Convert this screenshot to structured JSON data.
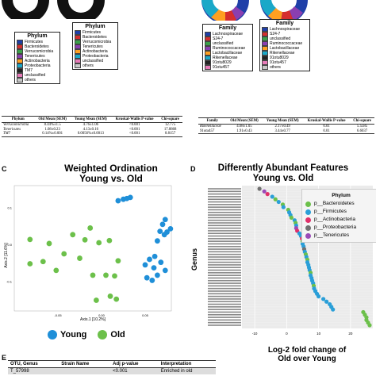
{
  "phylum_legend_1": {
    "title": "Phylum",
    "items": [
      {
        "label": "Firmicutes",
        "color": "#1f3fa8"
      },
      {
        "label": "Bacteroidetes",
        "color": "#d62e2e"
      },
      {
        "label": "Verrucomicrobia",
        "color": "#3aa04a"
      },
      {
        "label": "Tenericutes",
        "color": "#8a3fb0"
      },
      {
        "label": "Actinobacteria",
        "color": "#ffa020"
      },
      {
        "label": "Proteobacteria",
        "color": "#1aa8c8"
      },
      {
        "label": "TM7",
        "color": "#222222"
      },
      {
        "label": "unclassified",
        "color": "#e67ab8"
      },
      {
        "label": "others",
        "color": "#c8c8c8"
      }
    ]
  },
  "phylum_legend_2": {
    "title": "Phylum",
    "items": [
      {
        "label": "Firmicutes",
        "color": "#1f3fa8"
      },
      {
        "label": "Bacteroidetes",
        "color": "#d62e2e"
      },
      {
        "label": "Verrucomicrobia",
        "color": "#3aa04a"
      },
      {
        "label": "Tenericutes",
        "color": "#8a3fb0"
      },
      {
        "label": "Actinobacteria",
        "color": "#ffa020"
      },
      {
        "label": "Proteobacteria",
        "color": "#1aa8c8"
      },
      {
        "label": "unclassified",
        "color": "#e67ab8"
      },
      {
        "label": "others",
        "color": "#c8c8c8"
      }
    ]
  },
  "family_legend_1": {
    "title": "Family",
    "items": [
      {
        "label": "Lachnospiraceae",
        "color": "#1f3fa8"
      },
      {
        "label": "S24-7",
        "color": "#d62e2e"
      },
      {
        "label": "unclassified",
        "color": "#3aa04a"
      },
      {
        "label": "Ruminococcaceae",
        "color": "#8a3fb0"
      },
      {
        "label": "Lactobacillaceae",
        "color": "#ffa020"
      },
      {
        "label": "Rikenellaceae",
        "color": "#1aa8c8"
      },
      {
        "label": "91otu8029",
        "color": "#222222"
      },
      {
        "label": "91otu457",
        "color": "#e67ab8"
      }
    ]
  },
  "family_legend_2": {
    "title": "Family",
    "items": [
      {
        "label": "Lachnospiraceae",
        "color": "#1f3fa8"
      },
      {
        "label": "S24-7",
        "color": "#d62e2e"
      },
      {
        "label": "unclassified",
        "color": "#3aa04a"
      },
      {
        "label": "Ruminococcaceae",
        "color": "#8a3fb0"
      },
      {
        "label": "Lactobacillaceae",
        "color": "#ffa020"
      },
      {
        "label": "Rikenellaceae",
        "color": "#1aa8c8"
      },
      {
        "label": "91otu8029",
        "color": "#222222"
      },
      {
        "label": "91otu457",
        "color": "#e67ab8"
      },
      {
        "label": "others",
        "color": "#c8c8c8"
      }
    ]
  },
  "phylum_table": {
    "headers": [
      "Phylum",
      "Old Mean (SEM)",
      "Young Mean (SEM)",
      "Kruskal-Wallis P-value",
      "Chi-square"
    ],
    "rows": [
      [
        "Verrucomicrobia",
        "8.44%±1.5",
        "4.76±1.06",
        "<0.001",
        "12.775"
      ],
      [
        "Tenericutes",
        "1.08±0.23",
        "4.13±0.16",
        "<0.001",
        "17.8868"
      ],
      [
        "TM7",
        "0.14%±0.001",
        "0.0056%±0.0013",
        "<0.001",
        "8.8157"
      ]
    ]
  },
  "family_table": {
    "headers": [
      "Family",
      "Old Mean (SEM)",
      "Young Mean (SEM)",
      "Kruskal-Wallis P-value",
      "Chi-square"
    ],
    "rows": [
      [
        "Rikenellaceae",
        "4.68±1.05",
        "2.17±0.49",
        "0.01",
        "5.5585"
      ],
      [
        "91otu457",
        "1.91±0.43",
        "3.44±0.77",
        "0.01",
        "6.6037"
      ]
    ]
  },
  "panel_c": {
    "letter": "C",
    "title_line1": "Weighted Ordination",
    "title_line2": "Young vs. Old",
    "xlabel": "Axis.1  [10.2%]",
    "ylabel": "Axis.2  [11.6%]",
    "xticks": [
      "-0.05",
      "0.00",
      "0.05"
    ],
    "yticks": [
      "0.1",
      "0.0",
      "-0.1"
    ],
    "legend": [
      {
        "label": "Young",
        "color": "#1f8fd8"
      },
      {
        "label": "Old",
        "color": "#6cc04a"
      }
    ]
  },
  "panel_d": {
    "letter": "D",
    "title_line1": "Differently Abundant Features",
    "title_line2": "Young vs. Old",
    "ylabel": "Genus",
    "xlabel_line1": "Log-2 fold change of",
    "xlabel_line2": "Old over Young",
    "xticks": [
      "-10",
      "0",
      "10",
      "20"
    ],
    "legend_title": "Phylum",
    "legend": [
      {
        "label": "p__Bacteroidetes",
        "color": "#6cc04a"
      },
      {
        "label": "p__Firmicutes",
        "color": "#2a9fd8"
      },
      {
        "label": "p__Actinobacteria",
        "color": "#e0306a"
      },
      {
        "label": "p__Proteobacteria",
        "color": "#707070"
      },
      {
        "label": "p__Tenericutes",
        "color": "#9a4ab8"
      }
    ]
  },
  "panel_e": {
    "letter": "E",
    "headers": [
      "OTU, Genus",
      "Strain Name",
      "Adj p-value",
      "Interpretation"
    ],
    "row": [
      "T_57998",
      "",
      "<0.001",
      "Enriched in old"
    ]
  },
  "chart_data": [
    {
      "type": "scatter",
      "title": "Weighted Ordination Young vs. Old",
      "xlabel": "Axis.1  [10.2%]",
      "ylabel": "Axis.2  [11.6%]",
      "xlim": [
        -0.1,
        0.08
      ],
      "ylim": [
        -0.18,
        0.16
      ],
      "series": [
        {
          "name": "Young",
          "color": "#1f8fd8",
          "points": [
            [
              0.025,
              0.123
            ],
            [
              0.029,
              0.125
            ],
            [
              0.019,
              0.119
            ],
            [
              0.033,
              0.128
            ],
            [
              0.073,
              0.068
            ],
            [
              0.07,
              0.055
            ],
            [
              0.075,
              0.034
            ],
            [
              0.067,
              0.036
            ],
            [
              0.079,
              0.043
            ],
            [
              0.072,
              0.027
            ],
            [
              0.064,
              0.01
            ],
            [
              0.061,
              -0.032
            ],
            [
              0.055,
              -0.04
            ],
            [
              0.068,
              -0.048
            ],
            [
              0.05,
              -0.055
            ],
            [
              0.06,
              -0.063
            ],
            [
              0.073,
              -0.07
            ],
            [
              0.064,
              -0.083
            ],
            [
              0.052,
              -0.09
            ],
            [
              0.058,
              -0.097
            ]
          ]
        },
        {
          "name": "Old",
          "color": "#6cc04a",
          "points": [
            [
              -0.013,
              0.045
            ],
            [
              -0.033,
              0.027
            ],
            [
              -0.003,
              0.005
            ],
            [
              0.009,
              0.011
            ],
            [
              -0.019,
              0.013
            ],
            [
              -0.082,
              0.014
            ],
            [
              -0.06,
              0.003
            ],
            [
              -0.043,
              -0.025
            ],
            [
              -0.025,
              -0.037
            ],
            [
              -0.067,
              -0.046
            ],
            [
              -0.082,
              -0.052
            ],
            [
              -0.052,
              -0.07
            ],
            [
              -0.01,
              -0.083
            ],
            [
              0.005,
              -0.083
            ],
            [
              0.019,
              -0.044
            ],
            [
              0.015,
              -0.085
            ],
            [
              0.01,
              -0.14
            ],
            [
              0.017,
              -0.148
            ],
            [
              -0.006,
              -0.151
            ]
          ]
        }
      ]
    },
    {
      "type": "scatter",
      "title": "Differently Abundant Features Young vs. Old",
      "xlabel": "Log-2 fold change of Old over Young",
      "ylabel": "Genus",
      "xlim": [
        -14,
        27
      ],
      "series": [
        {
          "name": "p__Bacteroidetes",
          "values": [
            -3.5,
            -1.2,
            0.5,
            1.5,
            2.8,
            6.5,
            7.5,
            8.5,
            6.0,
            5.0,
            24.5,
            25.0,
            25.5,
            26.0,
            25.0,
            24.0
          ]
        },
        {
          "name": "p__Firmicutes",
          "values": [
            -4.5,
            -2.5,
            -1.0,
            0.8,
            1.2,
            2.5,
            3.0,
            4.0,
            4.5,
            5.0,
            5.3,
            5.7,
            6.2,
            6.5,
            6.8,
            7.0,
            7.2,
            7.5,
            7.8,
            8.0,
            8.3,
            8.6,
            9.0,
            9.5,
            10.0,
            11.5,
            12.5,
            13.5,
            14.0,
            14.5
          ]
        },
        {
          "name": "p__Actinobacteria",
          "values": [
            4.8,
            3.3,
            -6.0
          ]
        },
        {
          "name": "p__Proteobacteria",
          "values": [
            -8.5,
            5.5
          ]
        },
        {
          "name": "p__Tenericutes",
          "values": [
            3.0,
            -7.0
          ]
        }
      ]
    }
  ]
}
